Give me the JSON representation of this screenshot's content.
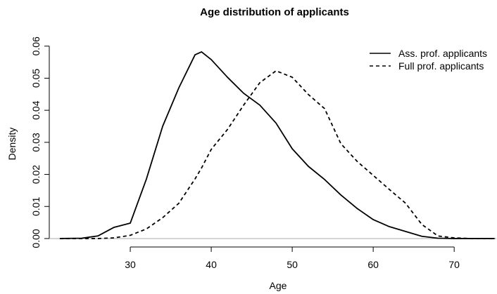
{
  "chart_data": {
    "type": "line",
    "title": "Age distribution of applicants",
    "x_label": "Age",
    "y_label": "Density",
    "x": [
      21.3,
      24,
      26,
      28,
      30,
      32,
      34,
      36,
      38,
      38.8,
      40,
      42,
      44,
      46,
      48,
      50,
      52,
      54,
      56,
      58,
      60,
      62,
      64,
      66,
      68,
      70,
      72,
      75
    ],
    "series": [
      {
        "name": "Ass. prof. applicants",
        "color": "#000000",
        "dash": "solid",
        "values": [
          0,
          0.0001,
          0.0008,
          0.0035,
          0.0048,
          0.0186,
          0.035,
          0.047,
          0.0573,
          0.0582,
          0.0558,
          0.0503,
          0.0453,
          0.0416,
          0.036,
          0.028,
          0.0225,
          0.0184,
          0.0136,
          0.0094,
          0.0059,
          0.0037,
          0.0022,
          0.0007,
          0.0001,
          0,
          0,
          0
        ]
      },
      {
        "name": "Full prof. applicants",
        "color": "#000000",
        "dash": "dashed",
        "values": [
          0,
          0,
          0,
          0.0002,
          0.001,
          0.003,
          0.0065,
          0.011,
          0.0186,
          0.022,
          0.0278,
          0.034,
          0.0416,
          0.0486,
          0.0523,
          0.0503,
          0.0449,
          0.0405,
          0.0296,
          0.0241,
          0.0197,
          0.0153,
          0.011,
          0.0044,
          0.0008,
          0.0002,
          0,
          0
        ]
      }
    ],
    "xlim": [
      20,
      75.2
    ],
    "ylim": [
      -0.0022,
      0.0606
    ],
    "xticks": [
      30,
      40,
      50,
      60,
      70
    ],
    "yticks": [
      {
        "value": 0,
        "label": "0.00"
      },
      {
        "value": 0.01,
        "label": "0.01"
      },
      {
        "value": 0.02,
        "label": "0.02"
      },
      {
        "value": 0.03,
        "label": "0.03"
      },
      {
        "value": 0.04,
        "label": "0.04"
      },
      {
        "value": 0.05,
        "label": "0.05"
      },
      {
        "value": 0.06,
        "label": "0.06"
      }
    ],
    "legend": "topright"
  }
}
